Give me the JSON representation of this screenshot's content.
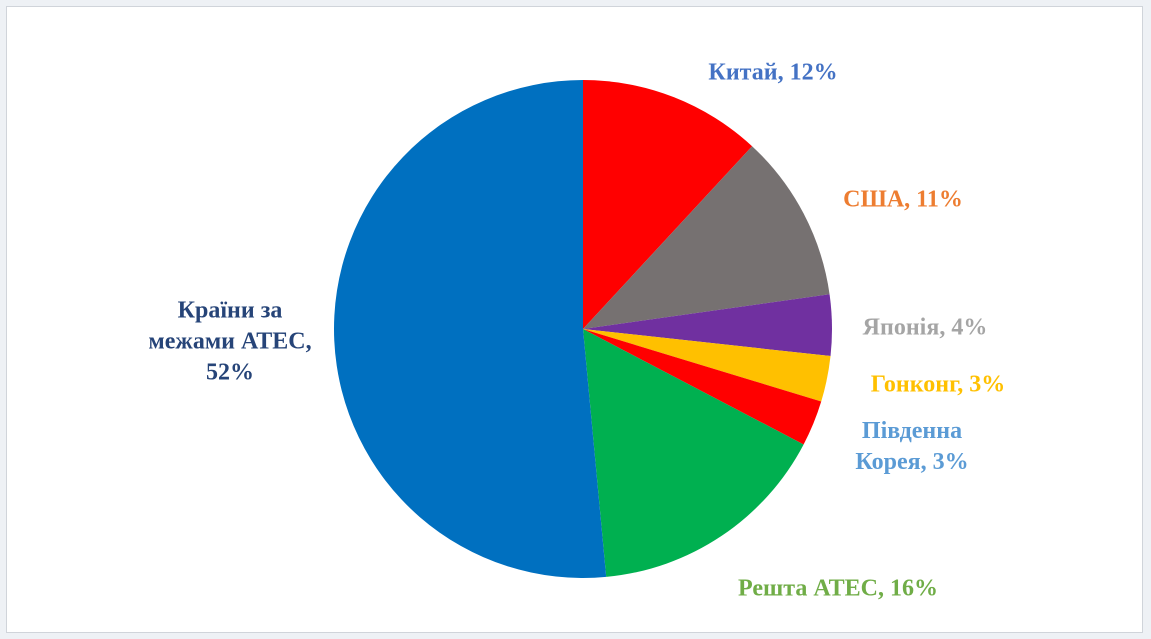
{
  "chart_data": {
    "type": "pie",
    "values": [
      12,
      11,
      4,
      3,
      3,
      16,
      52
    ],
    "value_labels": [
      "Китай, 12%",
      "США, 11%",
      "Японія, 4%",
      "Гонконг, 3%",
      "Південна Корея, 3%",
      "Решта АТЕС, 16%",
      "Країни за межами АТЕС, 52%"
    ],
    "colors": [
      "#ff0000",
      "#767171",
      "#7030a0",
      "#ffc000",
      "#ff0000",
      "#00b050",
      "#0070c0"
    ],
    "label_colors": [
      "#4472c4",
      "#ed7d31",
      "#a5a5a5",
      "#ffc000",
      "#5b9bd5",
      "#70ad47",
      "#264478"
    ]
  }
}
